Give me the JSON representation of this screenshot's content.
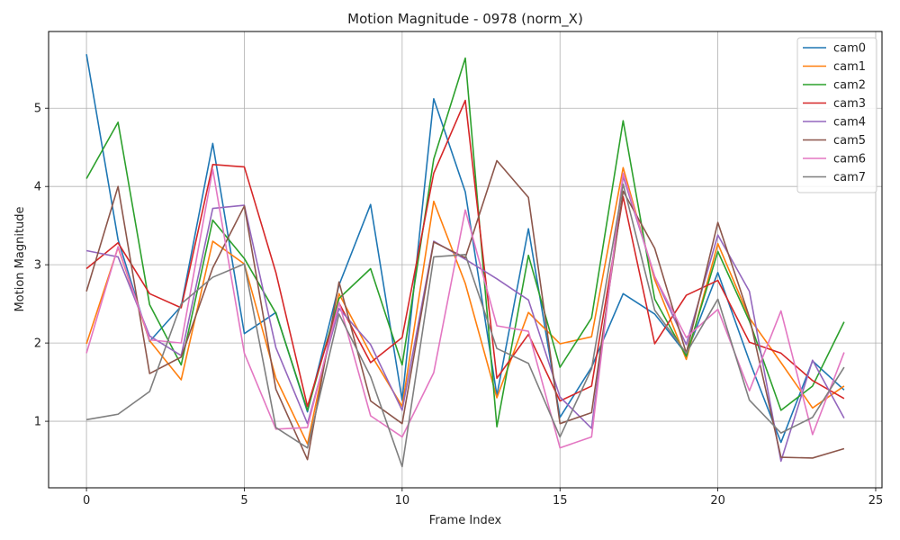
{
  "chart_data": {
    "type": "line",
    "title": "Motion Magnitude - 0978 (norm_X)",
    "xlabel": "Frame Index",
    "ylabel": "Motion Magnitude",
    "xlim": [
      -1.2,
      25.2
    ],
    "ylim": [
      0.15,
      5.98
    ],
    "xticks": [
      0,
      5,
      10,
      15,
      20,
      25
    ],
    "yticks": [
      1,
      2,
      3,
      4,
      5
    ],
    "grid": true,
    "legend_position": "top-right",
    "x": [
      0,
      1,
      2,
      3,
      4,
      5,
      6,
      7,
      8,
      9,
      10,
      11,
      12,
      13,
      14,
      15,
      16,
      17,
      18,
      19,
      20,
      21,
      22,
      23,
      24
    ],
    "series": [
      {
        "name": "cam0",
        "color": "#1f77b4",
        "values": [
          5.69,
          3.32,
          2.02,
          2.47,
          4.55,
          2.12,
          2.39,
          1.12,
          2.74,
          3.77,
          1.27,
          5.12,
          3.93,
          1.33,
          3.46,
          1.05,
          1.69,
          2.63,
          2.37,
          1.86,
          2.9,
          1.77,
          0.73,
          1.77,
          1.4
        ]
      },
      {
        "name": "cam1",
        "color": "#ff7f0e",
        "values": [
          1.99,
          3.22,
          2.03,
          1.53,
          3.3,
          3.01,
          1.55,
          0.71,
          2.63,
          1.86,
          1.19,
          3.81,
          2.76,
          1.3,
          2.39,
          1.99,
          2.08,
          4.24,
          2.81,
          1.79,
          3.27,
          2.32,
          1.75,
          1.17,
          1.45
        ]
      },
      {
        "name": "cam2",
        "color": "#2ca02c",
        "values": [
          4.1,
          4.82,
          2.49,
          1.72,
          3.57,
          3.08,
          2.38,
          1.14,
          2.57,
          2.95,
          1.72,
          4.35,
          5.64,
          0.93,
          3.12,
          1.69,
          2.32,
          4.84,
          2.56,
          1.83,
          3.17,
          2.28,
          1.14,
          1.45,
          2.27
        ]
      },
      {
        "name": "cam3",
        "color": "#d62728",
        "values": [
          2.95,
          3.28,
          2.63,
          2.45,
          4.28,
          4.25,
          2.9,
          1.19,
          2.51,
          1.75,
          2.07,
          4.17,
          5.1,
          1.55,
          2.11,
          1.26,
          1.45,
          3.87,
          1.99,
          2.61,
          2.8,
          2.01,
          1.87,
          1.52,
          1.29
        ]
      },
      {
        "name": "cam4",
        "color": "#9467bd",
        "values": [
          3.18,
          3.1,
          2.09,
          1.84,
          3.72,
          3.76,
          1.94,
          0.97,
          2.44,
          1.98,
          1.14,
          3.3,
          3.07,
          2.82,
          2.55,
          1.31,
          0.91,
          4.13,
          2.85,
          1.98,
          3.38,
          2.66,
          0.49,
          1.78,
          1.04
        ]
      },
      {
        "name": "cam5",
        "color": "#8c564b",
        "values": [
          2.66,
          4.0,
          1.61,
          1.82,
          2.96,
          3.75,
          1.41,
          0.51,
          2.78,
          1.26,
          0.97,
          3.29,
          3.09,
          4.33,
          3.86,
          0.97,
          1.11,
          3.94,
          3.21,
          1.87,
          3.54,
          2.33,
          0.54,
          0.53,
          0.65
        ]
      },
      {
        "name": "cam6",
        "color": "#e377c2",
        "values": [
          1.87,
          3.23,
          2.04,
          2.0,
          4.22,
          1.87,
          0.9,
          0.92,
          2.52,
          1.07,
          0.8,
          1.62,
          3.7,
          2.22,
          2.15,
          0.66,
          0.8,
          4.17,
          2.85,
          2.07,
          2.43,
          1.39,
          2.41,
          0.83,
          1.88
        ]
      },
      {
        "name": "cam7",
        "color": "#7f7f7f",
        "values": [
          1.02,
          1.09,
          1.38,
          2.5,
          2.84,
          3.01,
          0.92,
          0.66,
          2.37,
          1.57,
          0.42,
          3.1,
          3.13,
          1.93,
          1.74,
          0.8,
          1.67,
          4.03,
          2.42,
          1.87,
          2.56,
          1.27,
          0.85,
          1.05,
          1.69
        ]
      }
    ]
  }
}
